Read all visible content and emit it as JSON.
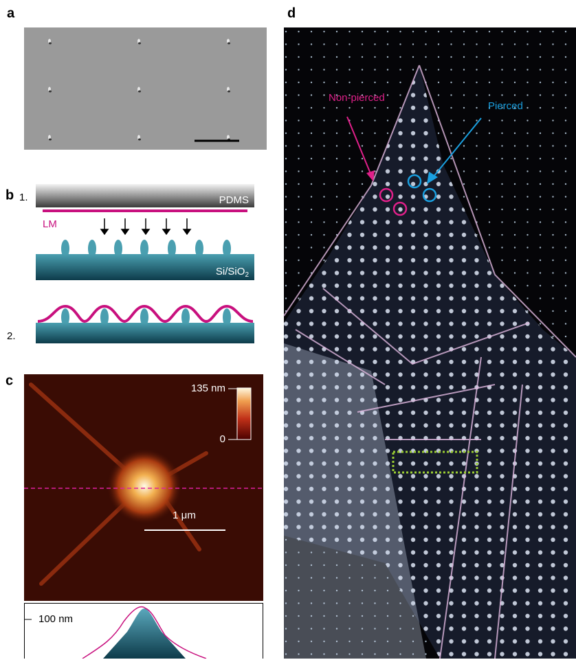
{
  "panels": {
    "a": {
      "label": "a"
    },
    "b": {
      "label": "b",
      "step1": "1.",
      "top_layer": "PDMS",
      "membrane": "LM",
      "substrate": "Si/SiO",
      "substrate_sub": "2",
      "step2": "2."
    },
    "c": {
      "label": "c",
      "colorbar_max": "135 nm",
      "colorbar_min": "0",
      "scale": "1 μm",
      "profile_label": "100 nm"
    },
    "d": {
      "label": "d",
      "annotation_left": "Non-pierced",
      "annotation_right": "Pierced"
    }
  }
}
